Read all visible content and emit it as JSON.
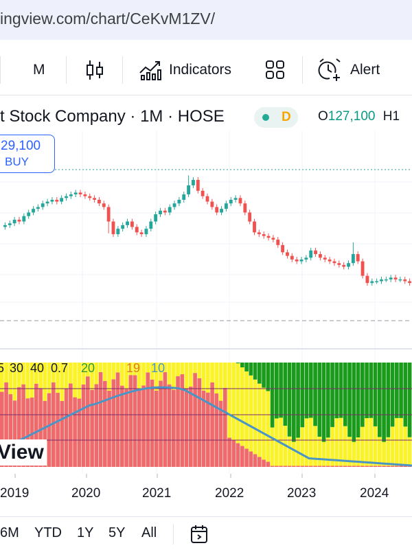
{
  "browser": {
    "url": "ingview.com/chart/CeKvM1ZV/"
  },
  "toolbar": {
    "interval_label": "M",
    "indicators_label": "Indicators",
    "alert_label": "Alert",
    "icons": [
      "candles-icon",
      "indicators-icon",
      "layout-grid-icon",
      "alert-clock-icon"
    ]
  },
  "legend": {
    "symbol_name": "t Stock Company · 1M · HOSE",
    "badge": "D",
    "open_label": "O",
    "open_value": "127,100",
    "high_label": "H1"
  },
  "price_label": {
    "price": "29,100",
    "side": "BUY"
  },
  "indicator_labels": [
    "5",
    "30",
    "40",
    "0.7",
    "20",
    "19",
    "10"
  ],
  "watermark": "View",
  "colors": {
    "up": "#26a69a",
    "down": "#ef5350",
    "zone_red": "#ef6b6b",
    "zone_yellow": "#fbf22a",
    "zone_green": "#1b9b1b",
    "line": "#4a95c6"
  },
  "chart_data": {
    "type": "candlestick",
    "x_tick_labels": [
      "2019",
      "2020",
      "2021",
      "2022",
      "2023",
      "2024"
    ],
    "series": [
      {
        "name": "price",
        "close_path": [
          0.38,
          0.39,
          0.41,
          0.4,
          0.43,
          0.45,
          0.47,
          0.48,
          0.5,
          0.51,
          0.52,
          0.51,
          0.53,
          0.54,
          0.55,
          0.56,
          0.55,
          0.54,
          0.53,
          0.52,
          0.5,
          0.48,
          0.4,
          0.33,
          0.36,
          0.38,
          0.4,
          0.37,
          0.34,
          0.33,
          0.36,
          0.4,
          0.44,
          0.46,
          0.45,
          0.48,
          0.5,
          0.52,
          0.55,
          0.6,
          0.63,
          0.57,
          0.54,
          0.51,
          0.48,
          0.45,
          0.47,
          0.5,
          0.52,
          0.53,
          0.5,
          0.45,
          0.4,
          0.34,
          0.33,
          0.32,
          0.31,
          0.3,
          0.27,
          0.23,
          0.21,
          0.19,
          0.18,
          0.19,
          0.2,
          0.24,
          0.22,
          0.2,
          0.19,
          0.18,
          0.17,
          0.16,
          0.15,
          0.17,
          0.22,
          0.18,
          0.1,
          0.06,
          0.07,
          0.07,
          0.08,
          0.08,
          0.09,
          0.08,
          0.08,
          0.07,
          0.06
        ]
      }
    ]
  }
}
